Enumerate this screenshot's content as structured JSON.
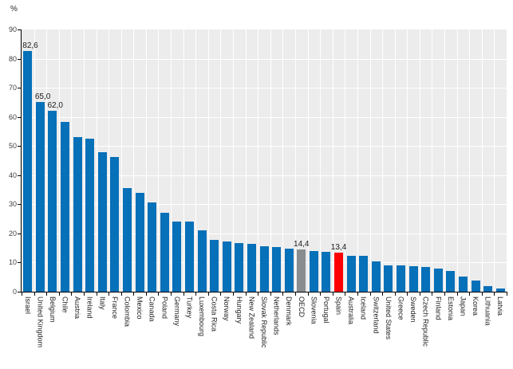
{
  "chart_data": {
    "type": "bar",
    "title": "",
    "unit_label": "%",
    "xlabel": "",
    "ylabel": "%",
    "ylim": [
      0,
      90
    ],
    "yticks": [
      0,
      10,
      20,
      30,
      40,
      50,
      60,
      70,
      80,
      90
    ],
    "grid": "white horizontal gridlines every 10 and vertical gridlines between categories",
    "legend_position": "none",
    "plot_background": "#ececec",
    "gridline_color": "#ffffff",
    "axis_color": "#000000",
    "bar_color_default": "#0670b8",
    "highlighted_bars": [
      {
        "category": "OECD",
        "color": "#8a8d8f"
      },
      {
        "category": "Spain",
        "color": "#fe0000"
      }
    ],
    "categories": [
      "Israel",
      "United Kingdom",
      "Belgium",
      "Chile",
      "Austria",
      "Ireland",
      "Italy",
      "France",
      "Colombia",
      "Mexico",
      "Canada",
      "Poland",
      "Germany",
      "Turkey",
      "Luxembourg",
      "Costa Rica",
      "Norway",
      "Hungary",
      "New Zealand",
      "Slovak Republic",
      "Netherlands",
      "Denmark",
      "OECD",
      "Slovenia",
      "Portugal",
      "Spain",
      "Australia",
      "Iceland",
      "Switzerland",
      "United States",
      "Greece",
      "Sweden",
      "Czech Republic",
      "Finland",
      "Estonia",
      "Japan",
      "Korea",
      "Lithuania",
      "Latvia"
    ],
    "values": [
      82.6,
      65.0,
      62.0,
      58.2,
      53.0,
      52.5,
      47.8,
      46.2,
      35.6,
      34.0,
      30.6,
      27.2,
      24.2,
      24.1,
      21.1,
      17.7,
      17.2,
      16.8,
      16.4,
      15.5,
      15.2,
      14.8,
      14.4,
      14.0,
      13.7,
      13.4,
      12.3,
      12.2,
      10.5,
      9.0,
      8.9,
      8.8,
      8.4,
      8.0,
      7.0,
      5.2,
      3.8,
      2.0,
      1.0
    ],
    "annotations": [
      {
        "category": "Israel",
        "label": "82,6"
      },
      {
        "category": "United Kingdom",
        "label": "65,0"
      },
      {
        "category": "Belgium",
        "label": "62,0"
      },
      {
        "category": "OECD",
        "label": "14,4"
      },
      {
        "category": "Spain",
        "label": "13,4"
      }
    ]
  }
}
